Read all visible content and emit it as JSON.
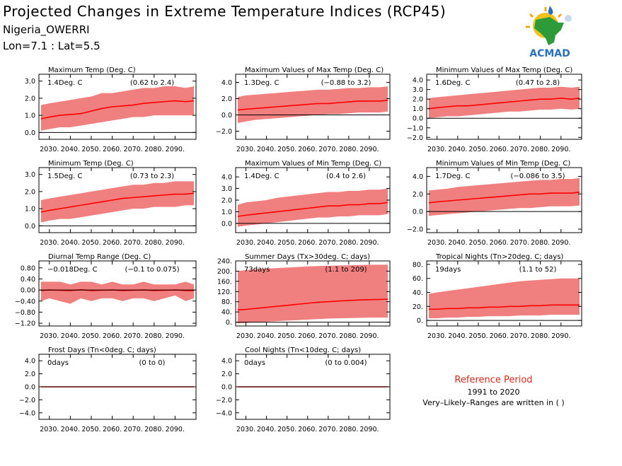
{
  "header": {
    "title": "Projected Changes in Extreme Temperature Indices (RCP45)",
    "location": "Nigeria_OWERRI",
    "coordinates": "Lon=7.1 : Lat=5.5"
  },
  "logo": {
    "text": "ACMAD",
    "icon": "africa-sun-logo-icon"
  },
  "reference": {
    "title": "Reference Period",
    "years": "1991 to 2020",
    "note": "Very–Likely–Ranges are written in ( )"
  },
  "colors": {
    "band": "#f08080",
    "line": "#ff0000",
    "zero": "#000000",
    "text": "#000000",
    "accent": "#d42a1f"
  },
  "chart_data": [
    {
      "type": "area",
      "title": "Maximum Temp (Deg. C)",
      "annotation": "1.4Deg. C",
      "range_text": "(0.62 to 2.4)",
      "x_tick_labels": [
        "2030.",
        "2040.",
        "2050.",
        "2060.",
        "2070.",
        "2080.",
        "2090."
      ],
      "y_tick_labels": [
        "0.0",
        "1.0",
        "2.0",
        "3.0"
      ],
      "x_range": [
        2025,
        2100
      ],
      "y_range": [
        -0.4,
        3.4
      ],
      "series": [
        {
          "x": [
            2026,
            2030,
            2035,
            2040,
            2045,
            2050,
            2055,
            2060,
            2065,
            2070,
            2075,
            2080,
            2085,
            2090,
            2095,
            2099
          ],
          "median": [
            0.8,
            0.9,
            1.0,
            1.05,
            1.1,
            1.25,
            1.4,
            1.5,
            1.55,
            1.6,
            1.7,
            1.75,
            1.8,
            1.85,
            1.8,
            1.85
          ],
          "lower": [
            0.1,
            0.2,
            0.3,
            0.3,
            0.4,
            0.5,
            0.6,
            0.7,
            0.8,
            0.9,
            0.9,
            1.0,
            1.0,
            1.0,
            1.0,
            1.0
          ],
          "upper": [
            1.6,
            1.7,
            1.8,
            1.9,
            2.0,
            2.1,
            2.3,
            2.3,
            2.4,
            2.5,
            2.6,
            2.6,
            2.7,
            2.7,
            2.6,
            2.7
          ]
        }
      ]
    },
    {
      "type": "area",
      "title": "Maximum Values of Max Temp (Deg. C)",
      "annotation": "1.3Deg. C",
      "range_text": "(−0.88 to 3.2)",
      "x_tick_labels": [
        "2030.",
        "2040.",
        "2050.",
        "2060.",
        "2070.",
        "2080.",
        "2090."
      ],
      "y_tick_labels": [
        "−2.0",
        "0.0",
        "2.0",
        "4.0"
      ],
      "x_range": [
        2025,
        2100
      ],
      "y_range": [
        -3,
        5
      ],
      "series": [
        {
          "x": [
            2026,
            2030,
            2035,
            2040,
            2045,
            2050,
            2055,
            2060,
            2065,
            2070,
            2075,
            2080,
            2085,
            2090,
            2095,
            2099
          ],
          "median": [
            0.6,
            0.7,
            0.8,
            0.9,
            1.0,
            1.1,
            1.2,
            1.3,
            1.4,
            1.4,
            1.5,
            1.6,
            1.7,
            1.7,
            1.7,
            1.8
          ],
          "lower": [
            -1.0,
            -0.8,
            -0.6,
            -0.5,
            -0.4,
            -0.3,
            -0.2,
            -0.1,
            0.0,
            0.1,
            0.1,
            0.2,
            0.3,
            0.3,
            0.3,
            0.4
          ],
          "upper": [
            2.2,
            2.4,
            2.5,
            2.6,
            2.7,
            2.8,
            2.9,
            3.0,
            3.1,
            3.1,
            3.2,
            3.3,
            3.3,
            3.4,
            3.4,
            3.5
          ]
        }
      ]
    },
    {
      "type": "area",
      "title": "Minimum Values of Max Temp (Deg. C)",
      "annotation": "1.6Deg. C",
      "range_text": "(0.47 to 2.8)",
      "x_tick_labels": [
        "2030.",
        "2040.",
        "2050.",
        "2060.",
        "2070.",
        "2080.",
        "2090."
      ],
      "y_tick_labels": [
        "−2.0",
        "−1.0",
        "0.0",
        "1.0",
        "2.0",
        "3.0",
        "4.0"
      ],
      "x_range": [
        2025,
        2100
      ],
      "y_range": [
        -2.2,
        4.6
      ],
      "series": [
        {
          "x": [
            2026,
            2030,
            2035,
            2040,
            2045,
            2050,
            2055,
            2060,
            2065,
            2070,
            2075,
            2080,
            2085,
            2090,
            2095,
            2099
          ],
          "median": [
            1.0,
            1.1,
            1.2,
            1.3,
            1.3,
            1.4,
            1.5,
            1.6,
            1.7,
            1.8,
            1.9,
            2.0,
            2.0,
            2.1,
            2.0,
            2.1
          ],
          "lower": [
            0.0,
            0.1,
            0.2,
            0.2,
            0.3,
            0.4,
            0.5,
            0.6,
            0.7,
            0.7,
            0.8,
            0.9,
            0.9,
            1.0,
            0.9,
            1.0
          ],
          "upper": [
            2.1,
            2.2,
            2.3,
            2.4,
            2.5,
            2.6,
            2.7,
            2.8,
            2.9,
            3.0,
            3.1,
            3.2,
            3.2,
            3.3,
            3.2,
            3.3
          ]
        }
      ]
    },
    {
      "type": "area",
      "title": "Minimum Temp (Deg. C)",
      "annotation": "1.5Deg. C",
      "range_text": "(0.73 to 2.3)",
      "x_tick_labels": [
        "2030.",
        "2040.",
        "2050.",
        "2060.",
        "2070.",
        "2080.",
        "2090."
      ],
      "y_tick_labels": [
        "0.0",
        "1.0",
        "2.0",
        "3.0"
      ],
      "x_range": [
        2025,
        2100
      ],
      "y_range": [
        -0.4,
        3.4
      ],
      "series": [
        {
          "x": [
            2026,
            2030,
            2035,
            2040,
            2045,
            2050,
            2055,
            2060,
            2065,
            2070,
            2075,
            2080,
            2085,
            2090,
            2095,
            2099
          ],
          "median": [
            0.8,
            0.9,
            1.0,
            1.1,
            1.2,
            1.3,
            1.4,
            1.5,
            1.6,
            1.65,
            1.7,
            1.75,
            1.8,
            1.85,
            1.85,
            1.9
          ],
          "lower": [
            0.2,
            0.3,
            0.4,
            0.4,
            0.5,
            0.6,
            0.7,
            0.8,
            0.9,
            1.0,
            1.0,
            1.1,
            1.1,
            1.1,
            1.2,
            1.2
          ],
          "upper": [
            1.5,
            1.6,
            1.7,
            1.8,
            1.9,
            2.0,
            2.1,
            2.2,
            2.3,
            2.4,
            2.4,
            2.5,
            2.5,
            2.6,
            2.6,
            2.6
          ]
        }
      ]
    },
    {
      "type": "area",
      "title": "Maximum Values of Min Temp (Deg. C)",
      "annotation": "1.4Deg. C",
      "range_text": "(0.4 to 2.6)",
      "x_tick_labels": [
        "2030.",
        "2040.",
        "2050.",
        "2060.",
        "2070.",
        "2080.",
        "2090."
      ],
      "y_tick_labels": [
        "0.0",
        "1.0",
        "2.0",
        "3.0",
        "4.0"
      ],
      "x_range": [
        2025,
        2100
      ],
      "y_range": [
        -0.8,
        4.8
      ],
      "series": [
        {
          "x": [
            2026,
            2030,
            2035,
            2040,
            2045,
            2050,
            2055,
            2060,
            2065,
            2070,
            2075,
            2080,
            2085,
            2090,
            2095,
            2099
          ],
          "median": [
            0.6,
            0.7,
            0.8,
            0.9,
            1.0,
            1.1,
            1.2,
            1.3,
            1.4,
            1.5,
            1.5,
            1.6,
            1.6,
            1.7,
            1.7,
            1.8
          ],
          "lower": [
            -0.3,
            -0.2,
            -0.1,
            0.0,
            0.1,
            0.2,
            0.3,
            0.4,
            0.5,
            0.5,
            0.6,
            0.6,
            0.7,
            0.7,
            0.7,
            0.8
          ],
          "upper": [
            1.6,
            1.8,
            1.9,
            2.0,
            2.2,
            2.3,
            2.4,
            2.5,
            2.6,
            2.7,
            2.7,
            2.8,
            2.8,
            2.9,
            2.9,
            3.0
          ]
        }
      ]
    },
    {
      "type": "area",
      "title": "Minimum Values of Min Temp (Deg. C)",
      "annotation": "1.7Deg. C",
      "range_text": "(−0.086 to 3.5)",
      "x_tick_labels": [
        "2030.",
        "2040.",
        "2050.",
        "2060.",
        "2070.",
        "2080.",
        "2090."
      ],
      "y_tick_labels": [
        "−2.0",
        "0.0",
        "2.0",
        "4.0"
      ],
      "x_range": [
        2025,
        2100
      ],
      "y_range": [
        -2.4,
        5.0
      ],
      "series": [
        {
          "x": [
            2026,
            2030,
            2035,
            2040,
            2045,
            2050,
            2055,
            2060,
            2065,
            2070,
            2075,
            2080,
            2085,
            2090,
            2095,
            2099
          ],
          "median": [
            1.0,
            1.1,
            1.2,
            1.3,
            1.4,
            1.5,
            1.6,
            1.7,
            1.8,
            1.9,
            2.0,
            2.0,
            2.1,
            2.1,
            2.1,
            2.2
          ],
          "lower": [
            -0.5,
            -0.4,
            -0.3,
            -0.2,
            -0.1,
            0.0,
            0.1,
            0.2,
            0.3,
            0.4,
            0.4,
            0.5,
            0.6,
            0.6,
            0.6,
            0.7
          ],
          "upper": [
            2.4,
            2.5,
            2.6,
            2.8,
            2.9,
            3.0,
            3.1,
            3.2,
            3.3,
            3.4,
            3.5,
            3.6,
            3.6,
            3.7,
            3.7,
            3.8
          ]
        }
      ]
    },
    {
      "type": "area",
      "title": "Diurnal Temp Range (Deg. C)",
      "annotation": "−0.018Deg. C",
      "range_text": "(−0.1 to 0.075)",
      "x_tick_labels": [
        "2030.",
        "2040.",
        "2050.",
        "2060.",
        "2070.",
        "2080.",
        "2090."
      ],
      "y_tick_labels": [
        "−1.20",
        "−0.80",
        "−0.40",
        "0.00",
        "0.40",
        "0.80"
      ],
      "x_range": [
        2025,
        2100
      ],
      "y_range": [
        -1.3,
        1.05
      ],
      "series": [
        {
          "x": [
            2026,
            2030,
            2035,
            2040,
            2045,
            2050,
            2055,
            2060,
            2065,
            2070,
            2075,
            2080,
            2085,
            2090,
            2095,
            2099
          ],
          "median": [
            -0.02,
            0.0,
            -0.01,
            -0.02,
            0.01,
            -0.02,
            -0.01,
            0.0,
            -0.02,
            -0.01,
            0.0,
            -0.02,
            -0.01,
            0.0,
            -0.02,
            -0.02
          ],
          "lower": [
            -0.4,
            -0.3,
            -0.4,
            -0.5,
            -0.3,
            -0.4,
            -0.3,
            -0.3,
            -0.4,
            -0.3,
            -0.3,
            -0.4,
            -0.3,
            -0.2,
            -0.4,
            -0.3
          ],
          "upper": [
            0.3,
            0.3,
            0.3,
            0.2,
            0.3,
            0.3,
            0.2,
            0.3,
            0.2,
            0.2,
            0.3,
            0.2,
            0.2,
            0.2,
            0.3,
            0.2
          ]
        }
      ]
    },
    {
      "type": "area",
      "title": "Summer Days (Tx>30deg. C; days)",
      "annotation": "73days",
      "range_text": "(1.1 to 209)",
      "x_tick_labels": [
        "2030.",
        "2040.",
        "2050.",
        "2060.",
        "2070.",
        "2080.",
        "2090."
      ],
      "y_tick_labels": [
        "0.",
        "40.",
        "80.",
        "120.",
        "160.",
        "200.",
        "240."
      ],
      "x_range": [
        2025,
        2100
      ],
      "y_range": [
        -15,
        240
      ],
      "series": [
        {
          "x": [
            2026,
            2030,
            2035,
            2040,
            2045,
            2050,
            2055,
            2060,
            2065,
            2070,
            2075,
            2080,
            2085,
            2090,
            2095,
            2099
          ],
          "median": [
            48,
            50,
            54,
            58,
            62,
            66,
            70,
            74,
            78,
            80,
            83,
            85,
            87,
            88,
            89,
            90
          ],
          "lower": [
            -5,
            -3,
            0,
            2,
            4,
            6,
            8,
            10,
            12,
            14,
            15,
            16,
            17,
            18,
            18,
            18
          ],
          "upper": [
            200,
            204,
            208,
            210,
            212,
            214,
            216,
            218,
            220,
            221,
            222,
            223,
            224,
            225,
            225,
            225
          ]
        }
      ]
    },
    {
      "type": "area",
      "title": "Tropical Nights (Tn>20deg. C; days)",
      "annotation": "19days",
      "range_text": "(1.1 to 52)",
      "x_tick_labels": [
        "2030.",
        "2040.",
        "2050.",
        "2060.",
        "2070.",
        "2080.",
        "2090."
      ],
      "y_tick_labels": [
        "0.",
        "20.",
        "40.",
        "60.",
        "80."
      ],
      "x_range": [
        2025,
        2100
      ],
      "y_range": [
        -8,
        85
      ],
      "series": [
        {
          "x": [
            2026,
            2030,
            2035,
            2040,
            2045,
            2050,
            2055,
            2060,
            2065,
            2070,
            2075,
            2080,
            2085,
            2090,
            2095,
            2099
          ],
          "median": [
            16,
            16,
            17,
            17,
            18,
            18,
            19,
            19,
            20,
            20,
            21,
            21,
            22,
            22,
            22,
            22
          ],
          "lower": [
            3,
            3,
            4,
            4,
            5,
            5,
            6,
            6,
            6,
            7,
            7,
            7,
            8,
            8,
            8,
            8
          ],
          "upper": [
            38,
            40,
            42,
            44,
            46,
            48,
            50,
            52,
            54,
            56,
            57,
            58,
            59,
            60,
            60,
            60
          ]
        }
      ]
    },
    {
      "type": "area",
      "title": "Frost Days (Tn<0deg. C; days)",
      "annotation": "0days",
      "range_text": "(0 to 0)",
      "x_tick_labels": [
        "2030.",
        "2040.",
        "2050.",
        "2060.",
        "2070.",
        "2080.",
        "2090."
      ],
      "y_tick_labels": [
        "−4.0",
        "−2.0",
        "0.0",
        "2.0",
        "4.0"
      ],
      "x_range": [
        2025,
        2100
      ],
      "y_range": [
        -5,
        5
      ],
      "series": [
        {
          "x": [
            2026,
            2099
          ],
          "median": [
            0,
            0
          ],
          "lower": [
            0,
            0
          ],
          "upper": [
            0,
            0
          ]
        }
      ]
    },
    {
      "type": "area",
      "title": "Cool Nights (Tn<10deg. C; days)",
      "annotation": "0days",
      "range_text": "(0 to 0.004)",
      "x_tick_labels": [
        "2030.",
        "2040.",
        "2050.",
        "2060.",
        "2070.",
        "2080.",
        "2090."
      ],
      "y_tick_labels": [
        "−4.0",
        "−2.0",
        "0.0",
        "2.0",
        "4.0"
      ],
      "x_range": [
        2025,
        2100
      ],
      "y_range": [
        -5,
        5
      ],
      "series": [
        {
          "x": [
            2026,
            2099
          ],
          "median": [
            0,
            0
          ],
          "lower": [
            0,
            0
          ],
          "upper": [
            0,
            0
          ]
        }
      ]
    }
  ]
}
